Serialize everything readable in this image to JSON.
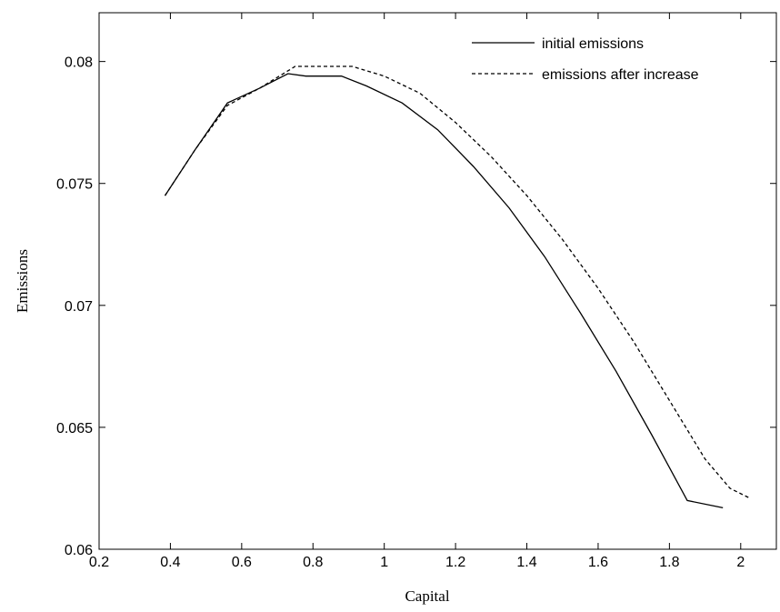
{
  "chart_data": {
    "type": "line",
    "xlabel": "Capital",
    "ylabel": "Emissions",
    "xlim": [
      0.2,
      2.1
    ],
    "ylim": [
      0.06,
      0.082
    ],
    "xticks": [
      0.2,
      0.4,
      0.6,
      0.8,
      1.0,
      1.2,
      1.4,
      1.6,
      1.8,
      2.0
    ],
    "xtick_labels": [
      "0.2",
      "0.4",
      "0.6",
      "0.8",
      "1",
      "1.2",
      "1.4",
      "1.6",
      "1.8",
      "2"
    ],
    "yticks": [
      0.06,
      0.065,
      0.07,
      0.075,
      0.08
    ],
    "ytick_labels": [
      "0.06",
      "0.065",
      "0.07",
      "0.075",
      "0.08"
    ],
    "grid": false,
    "legend_position": "top-right",
    "series": [
      {
        "name": "initial emissions",
        "style": "solid",
        "color": "#000000",
        "x": [
          0.385,
          0.47,
          0.56,
          0.65,
          0.73,
          0.78,
          0.88,
          0.95,
          1.05,
          1.15,
          1.25,
          1.35,
          1.45,
          1.55,
          1.65,
          1.75,
          1.85,
          1.95
        ],
        "y": [
          0.0745,
          0.0764,
          0.0783,
          0.0789,
          0.0795,
          0.0794,
          0.0794,
          0.079,
          0.0783,
          0.0772,
          0.0757,
          0.074,
          0.072,
          0.0697,
          0.0673,
          0.0647,
          0.062,
          0.0617
        ]
      },
      {
        "name": "emissions after increase",
        "style": "dashed",
        "color": "#000000",
        "x": [
          0.385,
          0.47,
          0.56,
          0.65,
          0.75,
          0.85,
          0.91,
          1.0,
          1.1,
          1.2,
          1.3,
          1.4,
          1.5,
          1.6,
          1.7,
          1.8,
          1.9,
          1.97,
          2.025
        ],
        "y": [
          0.0745,
          0.0764,
          0.0782,
          0.0789,
          0.0798,
          0.0798,
          0.0798,
          0.0794,
          0.0787,
          0.0775,
          0.0761,
          0.0745,
          0.0727,
          0.0707,
          0.0685,
          0.0661,
          0.0637,
          0.0625,
          0.0621
        ]
      }
    ]
  }
}
